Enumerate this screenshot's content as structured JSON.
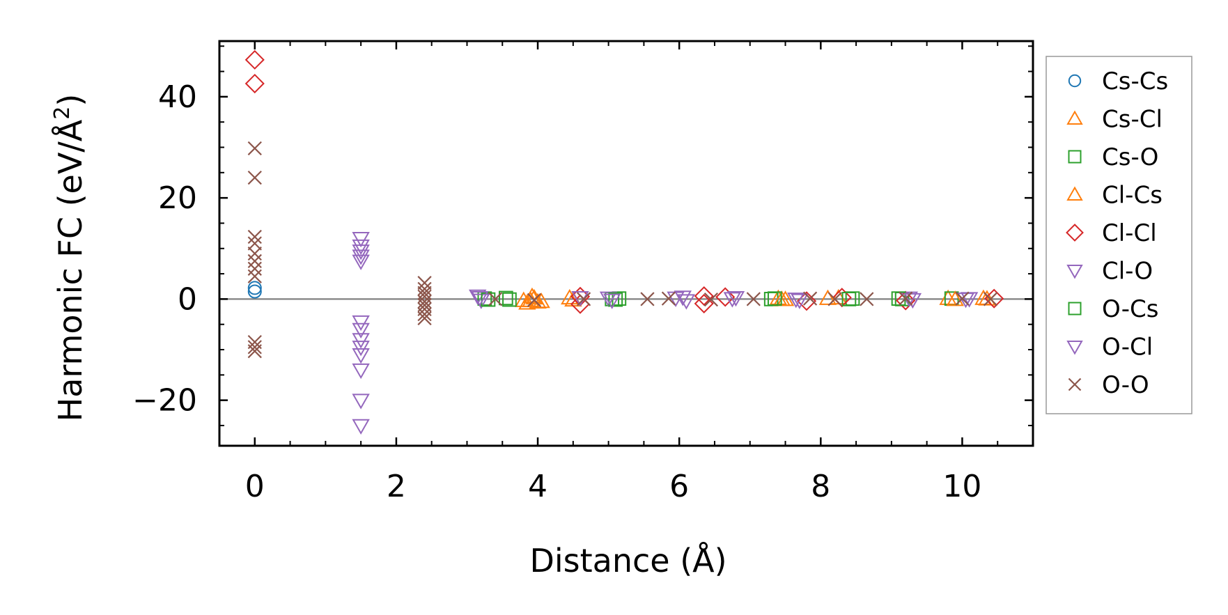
{
  "chart_data": {
    "type": "scatter",
    "title": "",
    "xlabel": "Distance (Å)",
    "ylabel": "Harmonic FC (eV/Å²)",
    "ylabel_main": "Harmonic FC (eV/Å",
    "ylabel_sup": "2",
    "ylabel_close": ")",
    "xlim": [
      -0.5,
      11.0
    ],
    "ylim": [
      -29,
      51
    ],
    "xticks": [
      0,
      2,
      4,
      6,
      8,
      10
    ],
    "xtick_labels": [
      "0",
      "2",
      "4",
      "6",
      "8",
      "10"
    ],
    "yticks": [
      -20,
      0,
      20,
      40
    ],
    "ytick_labels": [
      "−20",
      "0",
      "20",
      "40"
    ],
    "zero_line": 0,
    "legend_position": "right",
    "series": [
      {
        "name": "Cs-Cs",
        "marker": "circle",
        "filled": false,
        "color": "#1f77b4",
        "points": [
          [
            0,
            1.5
          ],
          [
            0,
            2.2
          ]
        ]
      },
      {
        "name": "Cs-Cl",
        "marker": "triangle-up",
        "filled": false,
        "color": "#ff7f0e",
        "points": [
          [
            3.85,
            -0.8
          ],
          [
            3.9,
            -0.3
          ],
          [
            3.95,
            0.2
          ],
          [
            4.05,
            -0.5
          ],
          [
            4.45,
            0.2
          ],
          [
            7.4,
            0.1
          ],
          [
            7.5,
            -0.1
          ],
          [
            8.1,
            0.1
          ],
          [
            8.25,
            0.2
          ],
          [
            9.8,
            0.1
          ],
          [
            10.3,
            0.1
          ]
        ]
      },
      {
        "name": "Cs-O",
        "marker": "square",
        "filled": false,
        "color": "#2ca02c",
        "points": [
          [
            3.25,
            0.1
          ],
          [
            3.55,
            0.2
          ],
          [
            5.05,
            0.0
          ],
          [
            5.15,
            0.1
          ],
          [
            7.3,
            0.0
          ],
          [
            8.45,
            0.1
          ],
          [
            9.15,
            0.0
          ],
          [
            9.85,
            0.1
          ]
        ]
      },
      {
        "name": "Cl-Cs",
        "marker": "triangle-up",
        "filled": false,
        "color": "#ff7f0e",
        "points": [
          [
            3.8,
            -0.3
          ],
          [
            3.92,
            0.5
          ],
          [
            4.0,
            -0.6
          ],
          [
            4.5,
            -0.2
          ],
          [
            7.45,
            -0.1
          ],
          [
            9.9,
            -0.1
          ],
          [
            10.35,
            0.0
          ]
        ]
      },
      {
        "name": "Cl-Cl",
        "marker": "diamond",
        "filled": false,
        "color": "#d62728",
        "points": [
          [
            0,
            47.3
          ],
          [
            0,
            42.6
          ],
          [
            4.6,
            0.5
          ],
          [
            4.6,
            -1.0
          ],
          [
            6.35,
            0.6
          ],
          [
            6.35,
            -0.9
          ],
          [
            6.65,
            0.4
          ],
          [
            7.8,
            -0.4
          ],
          [
            8.3,
            0.3
          ],
          [
            9.2,
            -0.3
          ],
          [
            10.45,
            0.1
          ]
        ]
      },
      {
        "name": "Cl-O",
        "marker": "triangle-down",
        "filled": false,
        "color": "#9467bd",
        "points": [
          [
            1.5,
            12.0
          ],
          [
            1.5,
            10.5
          ],
          [
            1.5,
            9.5
          ],
          [
            1.5,
            8.5
          ],
          [
            1.5,
            7.5
          ],
          [
            1.5,
            -4.5
          ],
          [
            1.5,
            -6.0
          ],
          [
            1.5,
            -8.0
          ],
          [
            1.5,
            -9.5
          ],
          [
            1.5,
            -11.0
          ],
          [
            1.5,
            -14.0
          ],
          [
            1.5,
            -20.0
          ],
          [
            1.5,
            -25.0
          ],
          [
            3.15,
            0.6
          ],
          [
            3.2,
            -0.2
          ],
          [
            4.6,
            0.3
          ],
          [
            5.0,
            0.2
          ],
          [
            6.05,
            0.4
          ],
          [
            6.8,
            0.3
          ],
          [
            7.65,
            0.0
          ],
          [
            9.25,
            0.2
          ],
          [
            10.05,
            0.0
          ]
        ]
      },
      {
        "name": "O-Cs",
        "marker": "square",
        "filled": false,
        "color": "#2ca02c",
        "points": [
          [
            3.3,
            -0.1
          ],
          [
            3.6,
            -0.1
          ],
          [
            5.1,
            -0.1
          ],
          [
            7.35,
            0.1
          ],
          [
            8.4,
            0.0
          ],
          [
            9.1,
            0.1
          ]
        ]
      },
      {
        "name": "O-Cl",
        "marker": "triangle-down",
        "filled": false,
        "color": "#9467bd",
        "points": [
          [
            3.18,
            0.3
          ],
          [
            5.05,
            -0.2
          ],
          [
            5.95,
            0.2
          ],
          [
            6.1,
            -0.3
          ],
          [
            6.75,
            0.1
          ],
          [
            7.7,
            -0.2
          ],
          [
            9.3,
            -0.1
          ],
          [
            10.1,
            0.1
          ]
        ]
      },
      {
        "name": "O-O",
        "marker": "x",
        "filled": false,
        "color": "#8c564b",
        "points": [
          [
            0,
            29.8
          ],
          [
            0,
            24.0
          ],
          [
            0,
            12.3
          ],
          [
            0,
            11.0
          ],
          [
            0,
            9.0
          ],
          [
            0,
            7.5
          ],
          [
            0,
            6.0
          ],
          [
            0,
            4.5
          ],
          [
            0,
            -8.5
          ],
          [
            0,
            -9.5
          ],
          [
            0,
            -10.3
          ],
          [
            2.4,
            3.2
          ],
          [
            2.4,
            2.0
          ],
          [
            2.4,
            1.2
          ],
          [
            2.4,
            0.5
          ],
          [
            2.4,
            -0.5
          ],
          [
            2.4,
            -1.2
          ],
          [
            2.4,
            -2.0
          ],
          [
            2.4,
            -3.0
          ],
          [
            2.4,
            -3.8
          ],
          [
            3.4,
            0.0
          ],
          [
            3.95,
            -0.2
          ],
          [
            4.65,
            0.0
          ],
          [
            5.55,
            0.0
          ],
          [
            5.85,
            0.1
          ],
          [
            6.45,
            -0.1
          ],
          [
            7.05,
            0.0
          ],
          [
            7.85,
            0.1
          ],
          [
            8.2,
            0.0
          ],
          [
            8.65,
            0.0
          ],
          [
            9.2,
            0.1
          ],
          [
            10.0,
            0.1
          ],
          [
            10.4,
            0.0
          ]
        ]
      }
    ]
  }
}
